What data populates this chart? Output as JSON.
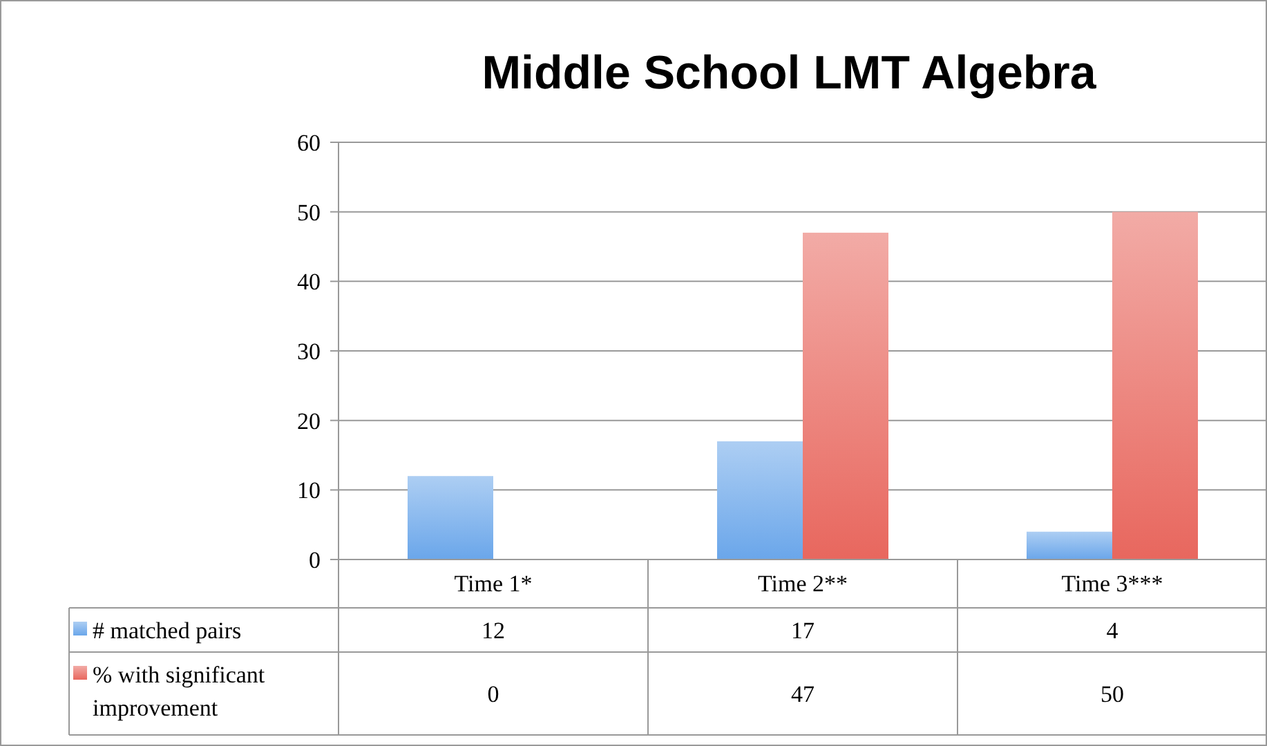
{
  "chart_data": {
    "type": "bar",
    "title": "Middle School LMT Algebra",
    "categories": [
      "Time 1*",
      "Time 2**",
      "Time 3***"
    ],
    "series": [
      {
        "name": "# matched pairs",
        "color": "#6aa6ea",
        "values": [
          12,
          17,
          4
        ]
      },
      {
        "name": "% with significant improvement",
        "color": "#e8675e",
        "values": [
          0,
          47,
          50
        ]
      }
    ],
    "ylim": [
      0,
      60
    ],
    "yticks": [
      0,
      10,
      20,
      30,
      40,
      50,
      60
    ],
    "grid": "y",
    "legend": "bottom",
    "data_labels": true
  }
}
